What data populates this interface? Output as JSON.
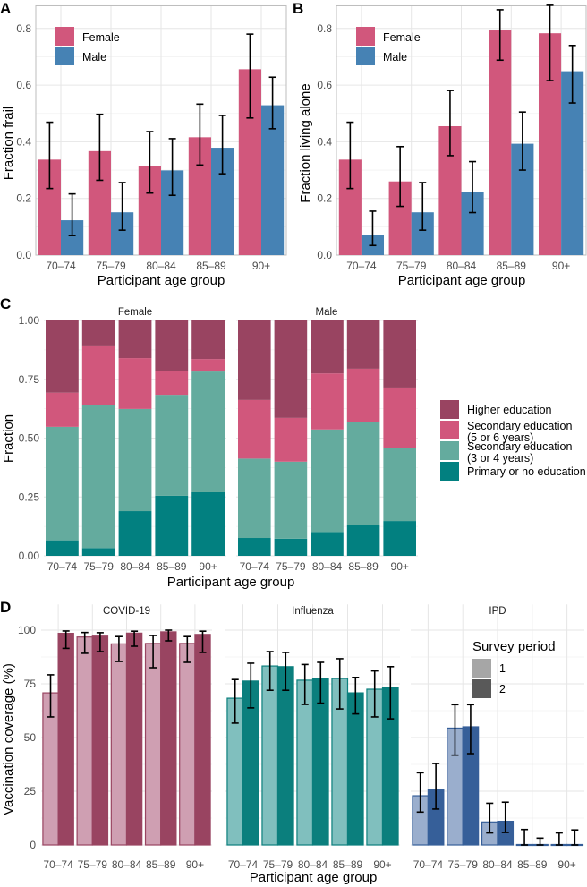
{
  "chart_data": [
    {
      "panel": "A",
      "type": "bar",
      "title": "",
      "xlabel": "Participant age group",
      "ylabel": "Fraction frail",
      "ylim": [
        0,
        0.88
      ],
      "yticks": [
        "0.0",
        "0.2",
        "0.4",
        "0.6",
        "0.8"
      ],
      "categories": [
        "70–74",
        "75–79",
        "80–84",
        "85–89",
        "90+"
      ],
      "legend": {
        "position": "top-left-inside",
        "entries": [
          "Female",
          "Male"
        ]
      },
      "series": [
        {
          "name": "Female",
          "color": "#d1577c",
          "values": [
            0.337,
            0.367,
            0.313,
            0.416,
            0.656
          ],
          "lower": [
            0.235,
            0.264,
            0.219,
            0.318,
            0.484
          ],
          "upper": [
            0.469,
            0.497,
            0.436,
            0.533,
            0.78
          ]
        },
        {
          "name": "Male",
          "color": "#4682b4",
          "values": [
            0.123,
            0.151,
            0.299,
            0.379,
            0.529
          ],
          "lower": [
            0.069,
            0.088,
            0.211,
            0.287,
            0.446
          ],
          "upper": [
            0.216,
            0.256,
            0.411,
            0.493,
            0.628
          ]
        }
      ]
    },
    {
      "panel": "B",
      "type": "bar",
      "title": "",
      "xlabel": "Participant age group",
      "ylabel": "Fraction living alone",
      "ylim": [
        0,
        0.88
      ],
      "yticks": [
        "0.0",
        "0.2",
        "0.4",
        "0.6",
        "0.8"
      ],
      "categories": [
        "70–74",
        "75–79",
        "80–84",
        "85–89",
        "90+"
      ],
      "legend": {
        "position": "top-left-inside",
        "entries": [
          "Female",
          "Male"
        ]
      },
      "series": [
        {
          "name": "Female",
          "color": "#d1577c",
          "values": [
            0.337,
            0.26,
            0.455,
            0.793,
            0.783
          ],
          "lower": [
            0.235,
            0.172,
            0.351,
            0.688,
            0.616
          ],
          "upper": [
            0.469,
            0.383,
            0.581,
            0.866,
            0.882
          ]
        },
        {
          "name": "Male",
          "color": "#4682b4",
          "values": [
            0.072,
            0.151,
            0.224,
            0.393,
            0.649
          ],
          "lower": [
            0.034,
            0.088,
            0.15,
            0.3,
            0.537
          ],
          "upper": [
            0.155,
            0.256,
            0.33,
            0.505,
            0.74
          ]
        }
      ]
    },
    {
      "panel": "C",
      "type": "bar",
      "stacked": true,
      "xlabel": "Participant age group",
      "ylabel": "Fraction",
      "ylim": [
        0,
        1
      ],
      "yticks": [
        "0.00",
        "0.25",
        "0.50",
        "0.75",
        "1.00"
      ],
      "categories": [
        "70–74",
        "75–79",
        "80–84",
        "85–89",
        "90+"
      ],
      "facets": [
        "Female",
        "Male"
      ],
      "legend": {
        "position": "right",
        "entries": [
          "Higher education",
          "Secondary education\n(5 or 6 years)",
          "Secondary education\n(3 or 4 years)",
          "Primary or no education"
        ]
      },
      "levels": [
        {
          "name": "Primary or no education",
          "color": "#028080"
        },
        {
          "name": "Secondary education (3 or 4 years)",
          "color": "#64ab9e"
        },
        {
          "name": "Secondary education (5 or 6 years)",
          "color": "#d1577c"
        },
        {
          "name": "Higher education",
          "color": "#994461"
        }
      ],
      "cumulative_tops": {
        "Female": [
          [
            0.066,
            0.548,
            0.693,
            1.0
          ],
          [
            0.033,
            0.64,
            0.89,
            1.0
          ],
          [
            0.19,
            0.624,
            0.84,
            1.0
          ],
          [
            0.255,
            0.684,
            0.784,
            1.0
          ],
          [
            0.27,
            0.783,
            0.836,
            1.0
          ]
        ],
        "Male": [
          [
            0.076,
            0.413,
            0.662,
            1.0
          ],
          [
            0.073,
            0.4,
            0.586,
            1.0
          ],
          [
            0.101,
            0.537,
            0.775,
            1.0
          ],
          [
            0.133,
            0.567,
            0.795,
            1.0
          ],
          [
            0.148,
            0.457,
            0.715,
            1.0
          ]
        ]
      }
    },
    {
      "panel": "D",
      "type": "bar",
      "xlabel": "Participant age group",
      "ylabel": "Vaccination coverage (%)",
      "ylim": [
        0,
        100
      ],
      "yticks": [
        "0",
        "25",
        "50",
        "75",
        "100"
      ],
      "categories": [
        "70–74",
        "75–79",
        "80–84",
        "85–89",
        "90+"
      ],
      "legend": {
        "title": "Survey period",
        "position": "top-right-inside",
        "entries": [
          "1",
          "2"
        ],
        "colors": [
          "#a6a6a6",
          "#595959"
        ]
      },
      "facets": [
        {
          "name": "COVID-19",
          "colors": [
            "#cf9fb2",
            "#994461"
          ],
          "outline": "#994461",
          "series": [
            {
              "name": "1",
              "values": [
                70.8,
                96.8,
                93.6,
                93.8,
                93.8
              ],
              "lower": [
                59.6,
                89.2,
                85.4,
                82.5,
                85.0
              ],
              "upper": [
                79.2,
                98.9,
                97.0,
                97.5,
                97.0
              ]
            },
            {
              "name": "2",
              "values": [
                98.5,
                97.2,
                98.6,
                99.2,
                98.0
              ],
              "lower": [
                91.5,
                90.0,
                92.5,
                95.0,
                89.6
              ],
              "upper": [
                99.6,
                98.8,
                99.5,
                100.0,
                99.5
              ]
            }
          ]
        },
        {
          "name": "Influenza",
          "colors": [
            "#80bfbe",
            "#0b7f7d"
          ],
          "outline": "#0b7f7d",
          "series": [
            {
              "name": "1",
              "values": [
                68.3,
                83.3,
                76.7,
                77.5,
                72.5
              ],
              "lower": [
                56.7,
                72.0,
                65.4,
                63.3,
                59.6
              ],
              "upper": [
                77.0,
                90.0,
                84.0,
                86.7,
                81.0
              ]
            },
            {
              "name": "2",
              "values": [
                76.3,
                83.0,
                77.5,
                70.8,
                73.3
              ],
              "lower": [
                63.8,
                72.0,
                66.0,
                61.0,
                58.7
              ],
              "upper": [
                84.6,
                89.6,
                85.0,
                78.0,
                83.0
              ]
            }
          ]
        },
        {
          "name": "IPD",
          "colors": [
            "#9aaecd",
            "#365f99"
          ],
          "outline": "#365f99",
          "series": [
            {
              "name": "1",
              "values": [
                22.9,
                54.4,
                10.7,
                0,
                0
              ],
              "lower": [
                15.3,
                41.8,
                5.6,
                0,
                0
              ],
              "upper": [
                33.6,
                65.3,
                19.4,
                7.2,
                5.6
              ]
            },
            {
              "name": "2",
              "values": [
                25.7,
                55.0,
                11.0,
                0,
                0
              ],
              "lower": [
                16.7,
                42.5,
                5.8,
                0,
                0
              ],
              "upper": [
                37.9,
                65.3,
                19.9,
                3.2,
                7.0
              ]
            }
          ]
        }
      ]
    }
  ],
  "panel_labels": [
    "A",
    "B",
    "C",
    "D"
  ]
}
